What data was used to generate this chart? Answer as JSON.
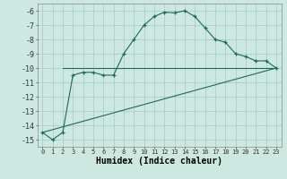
{
  "xlabel": "Humidex (Indice chaleur)",
  "xlim": [
    -0.5,
    23.5
  ],
  "ylim": [
    -15.5,
    -5.5
  ],
  "yticks": [
    -6,
    -7,
    -8,
    -9,
    -10,
    -11,
    -12,
    -13,
    -14,
    -15
  ],
  "xticks": [
    0,
    1,
    2,
    3,
    4,
    5,
    6,
    7,
    8,
    9,
    10,
    11,
    12,
    13,
    14,
    15,
    16,
    17,
    18,
    19,
    20,
    21,
    22,
    23
  ],
  "bg_color": "#cce8e0",
  "line_color": "#1a6b5a",
  "grid_color": "#a8cfc7",
  "line1_x": [
    0,
    1,
    2,
    3,
    4,
    5,
    6,
    7,
    8,
    9,
    10,
    11,
    12,
    13,
    14,
    15,
    16,
    17,
    18,
    19,
    20,
    21,
    22,
    23
  ],
  "line1_y": [
    -14.5,
    -15.0,
    -14.5,
    -10.5,
    -10.3,
    -10.3,
    -10.5,
    -10.5,
    -9.0,
    -8.0,
    -7.0,
    -6.4,
    -6.1,
    -6.15,
    -6.0,
    -6.4,
    -7.2,
    -8.0,
    -8.2,
    -9.0,
    -9.2,
    -9.5,
    -9.5,
    -10.0
  ],
  "line2_x": [
    2,
    23
  ],
  "line2_y": [
    -10.0,
    -10.0
  ],
  "line3_x": [
    0,
    23
  ],
  "line3_y": [
    -14.5,
    -10.0
  ]
}
